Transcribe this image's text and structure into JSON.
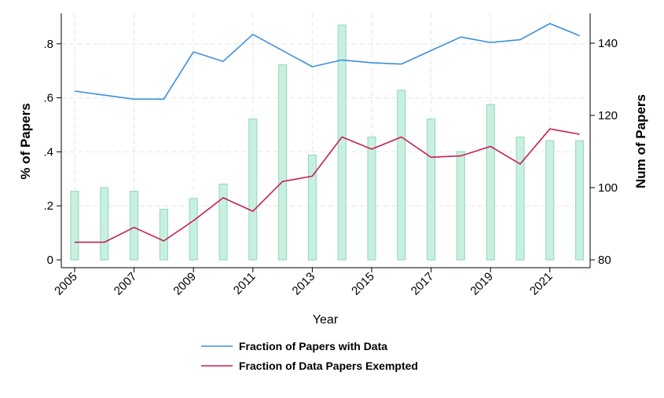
{
  "chart_data": {
    "type": "bar+line",
    "x": [
      2005,
      2006,
      2007,
      2008,
      2009,
      2010,
      2011,
      2012,
      2013,
      2014,
      2015,
      2016,
      2017,
      2018,
      2019,
      2020,
      2021,
      2022
    ],
    "xticks": [
      "2005",
      "2007",
      "2009",
      "2011",
      "2013",
      "2015",
      "2017",
      "2019",
      "2021"
    ],
    "xlabel": "Year",
    "ylabel_left": "% of Papers",
    "ylabel_right": "Num of Papers",
    "ylim_left": [
      0,
      0.9
    ],
    "yticks_left": [
      {
        "value": 0,
        "label": "0"
      },
      {
        "value": 0.2,
        "label": ".2"
      },
      {
        "value": 0.4,
        "label": ".4"
      },
      {
        "value": 0.6,
        "label": ".6"
      },
      {
        "value": 0.8,
        "label": ".8"
      }
    ],
    "ylim_right": [
      80,
      145
    ],
    "yticks_right": [
      {
        "value": 80,
        "label": "80"
      },
      {
        "value": 100,
        "label": "100"
      },
      {
        "value": 120,
        "label": "120"
      },
      {
        "value": 140,
        "label": "140"
      }
    ],
    "bars": {
      "axis": "right",
      "color": "#c8f0df",
      "edge_color": "#8ed8b8",
      "values": [
        99,
        100,
        99,
        94,
        97,
        101,
        119,
        134,
        109,
        145,
        114,
        127,
        119,
        110,
        123,
        114,
        113,
        113
      ]
    },
    "series": [
      {
        "name": "Fraction of Papers with Data",
        "axis": "left",
        "color": "#3a8fe0",
        "values": [
          0.625,
          0.61,
          0.595,
          0.595,
          0.77,
          0.735,
          0.835,
          0.775,
          0.715,
          0.74,
          0.73,
          0.725,
          0.775,
          0.825,
          0.805,
          0.815,
          0.875,
          0.83
        ]
      },
      {
        "name": "Fraction of Data Papers Exempted",
        "axis": "left",
        "color": "#c81d57",
        "values": [
          0.065,
          0.065,
          0.12,
          0.07,
          0.145,
          0.23,
          0.18,
          0.29,
          0.31,
          0.455,
          0.41,
          0.455,
          0.38,
          0.385,
          0.42,
          0.355,
          0.485,
          0.465
        ]
      }
    ],
    "grid": true,
    "legend_position": "bottom"
  }
}
